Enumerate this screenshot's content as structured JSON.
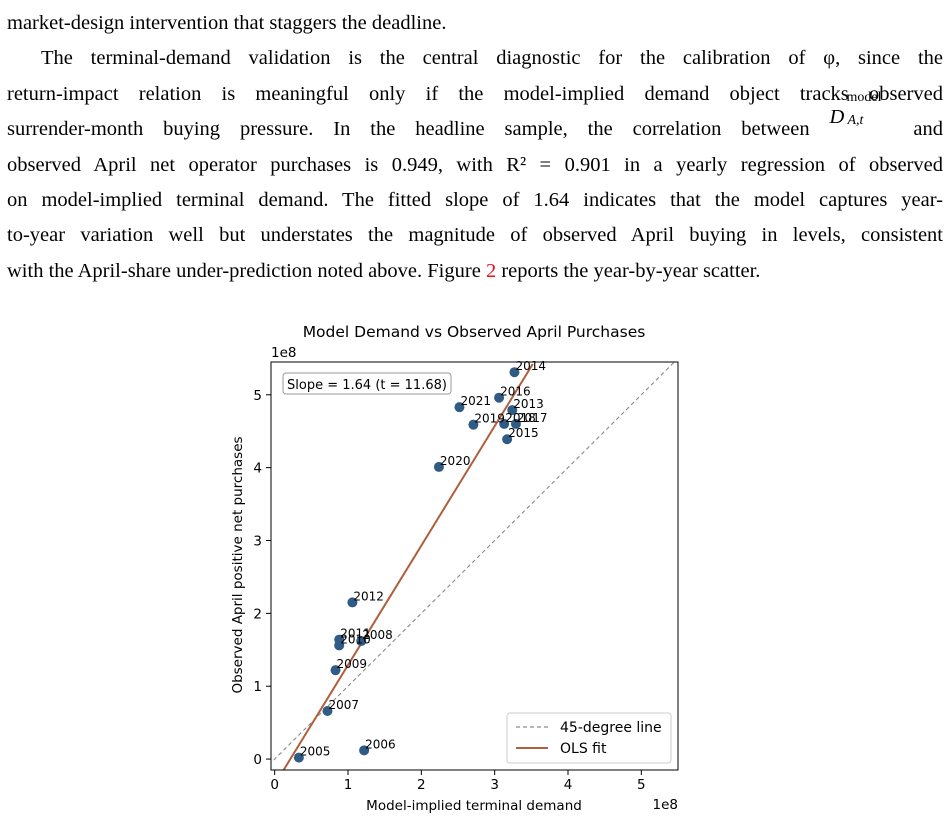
{
  "paragraph_top": {
    "line1": "market-design intervention that staggers the deadline."
  },
  "paragraph_main": {
    "line1": "The terminal-demand validation is the central diagnostic for the calibration of φ, since the",
    "line2": "return-impact relation is meaningful only if the model-implied demand object tracks observed",
    "line3_a": "surrender-month buying pressure.  In the headline sample, the correlation between",
    "line3_sym": "D",
    "line3_sup": "model",
    "line3_sub": "A,t",
    "line3_b": "and",
    "line4": "observed April net operator purchases is 0.949, with R² = 0.901 in a yearly regression of observed",
    "line5": "on model-implied terminal demand. The fitted slope of 1.64 indicates that the model captures year-",
    "line6": "to-year variation well but understates the magnitude of observed April buying in levels, consistent",
    "line7_a": "with the April-share under-prediction noted above. Figure",
    "line7_ref": "2",
    "line7_b": "reports the year-by-year scatter."
  },
  "chart_data": {
    "type": "scatter",
    "title": "Model Demand vs Observed April Purchases",
    "xlabel": "Model-implied terminal demand",
    "ylabel": "Observed April positive net purchases",
    "x_offset_label": "1e8",
    "y_offset_label": "1e8",
    "xlim": [
      -0.05,
      5.5
    ],
    "ylim": [
      -0.15,
      5.45
    ],
    "x_ticks": [
      0,
      1,
      2,
      3,
      4,
      5
    ],
    "y_ticks": [
      0,
      1,
      2,
      3,
      4,
      5
    ],
    "annotation": "Slope = 1.64 (t = 11.68)",
    "point_color": "#2f5b85",
    "ols_color": "#b05e3c",
    "diag_color": "#8a8a8a",
    "points": [
      {
        "label": "2005",
        "x": 0.33,
        "y": 0.02
      },
      {
        "label": "2006",
        "x": 1.22,
        "y": 0.12
      },
      {
        "label": "2007",
        "x": 0.72,
        "y": 0.66
      },
      {
        "label": "2008",
        "x": 1.18,
        "y": 1.62
      },
      {
        "label": "2009",
        "x": 0.83,
        "y": 1.22
      },
      {
        "label": "2010",
        "x": 0.88,
        "y": 1.56
      },
      {
        "label": "2011",
        "x": 0.88,
        "y": 1.64
      },
      {
        "label": "2012",
        "x": 1.06,
        "y": 2.15
      },
      {
        "label": "2013",
        "x": 3.24,
        "y": 4.79
      },
      {
        "label": "2014",
        "x": 3.27,
        "y": 5.31
      },
      {
        "label": "2015",
        "x": 3.17,
        "y": 4.39
      },
      {
        "label": "2016",
        "x": 3.06,
        "y": 4.96
      },
      {
        "label": "2017",
        "x": 3.29,
        "y": 4.6
      },
      {
        "label": "2018",
        "x": 3.13,
        "y": 4.6
      },
      {
        "label": "2019",
        "x": 2.71,
        "y": 4.59
      },
      {
        "label": "2020",
        "x": 2.24,
        "y": 4.01
      },
      {
        "label": "2021",
        "x": 2.52,
        "y": 4.83
      }
    ],
    "ols_line": {
      "x_start": 0.07,
      "x_end": 3.52
    },
    "ols": {
      "slope": 1.64,
      "intercept": -0.35
    },
    "legend": {
      "position": "lower right",
      "entries": [
        {
          "label": "45-degree line",
          "style": "dashed"
        },
        {
          "label": "OLS fit",
          "style": "solid"
        }
      ]
    }
  }
}
